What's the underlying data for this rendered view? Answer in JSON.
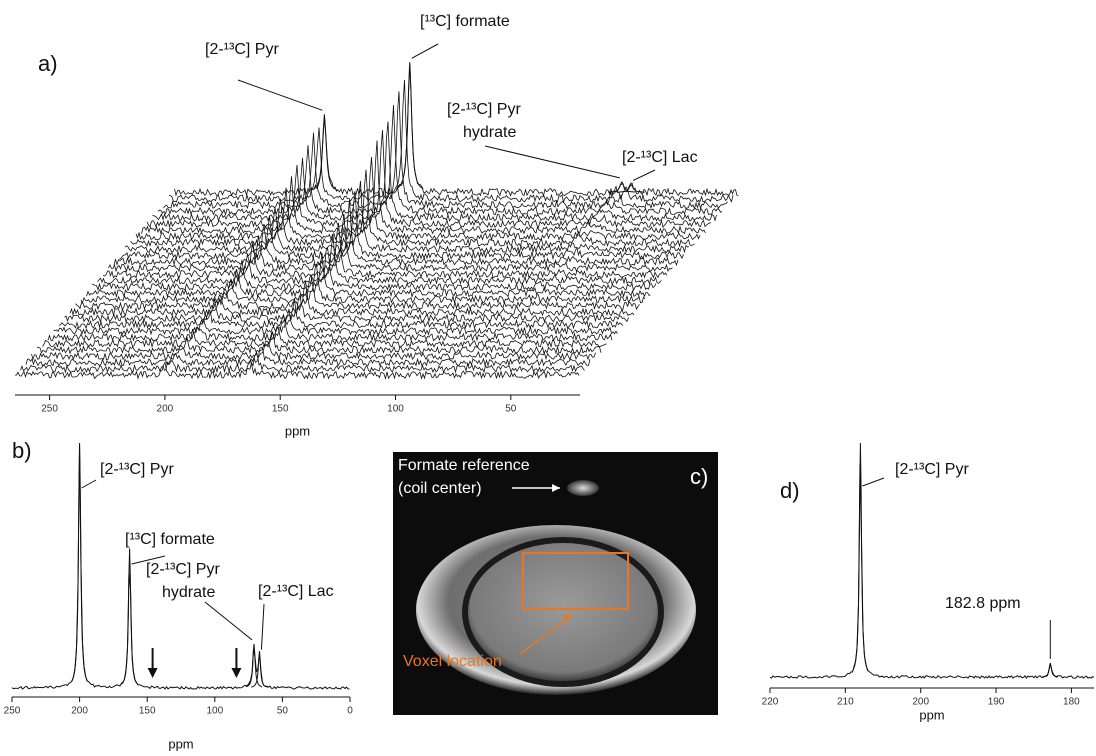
{
  "chart_data": [
    {
      "type": "waterfall",
      "panel": "a)",
      "xlabel": "ppm",
      "xlim": [
        265,
        20
      ],
      "xticks": [
        250,
        200,
        150,
        100,
        50
      ],
      "series": [
        {
          "name": "[2-¹³C] Pyr",
          "ppm": 200,
          "height": 60
        },
        {
          "name": "[¹³C] formate",
          "ppm": 163,
          "height": 100
        },
        {
          "name": [
            "[2-¹³C] Pyr",
            "hydrate"
          ],
          "ppm": 71,
          "height": 8
        },
        {
          "name": "[2-¹³C] Lac",
          "ppm": 67,
          "height": 6
        }
      ]
    },
    {
      "type": "spectrum",
      "panel": "b)",
      "xlabel": "ppm",
      "xlim": [
        250,
        0
      ],
      "xticks": [
        250,
        200,
        150,
        100,
        50,
        0
      ],
      "series": [
        {
          "name": "[2-¹³C] Pyr",
          "ppm": 200,
          "height": 100
        },
        {
          "name": "[¹³C] formate",
          "ppm": 163,
          "height": 57
        },
        {
          "name": [
            "[2-¹³C] Pyr",
            "hydrate"
          ],
          "ppm": 71,
          "height": 18
        },
        {
          "name": "[2-¹³C] Lac",
          "ppm": 67,
          "height": 14
        }
      ],
      "arrows": [
        146,
        84
      ]
    },
    {
      "type": "spectrum",
      "panel": "d)",
      "xlabel": "ppm",
      "xlim": [
        220,
        177
      ],
      "xticks": [
        220,
        210,
        200,
        190,
        180
      ],
      "series": [
        {
          "name": "[2-¹³C] Pyr",
          "ppm": 208,
          "height": 100
        },
        {
          "name": "182.8 ppm",
          "ppm": 182.8,
          "height": 6
        }
      ]
    }
  ],
  "panel_c": {
    "label": "c)",
    "annotation": [
      "Formate reference",
      "(coil center)"
    ],
    "voxel_label": "Voxel location"
  }
}
